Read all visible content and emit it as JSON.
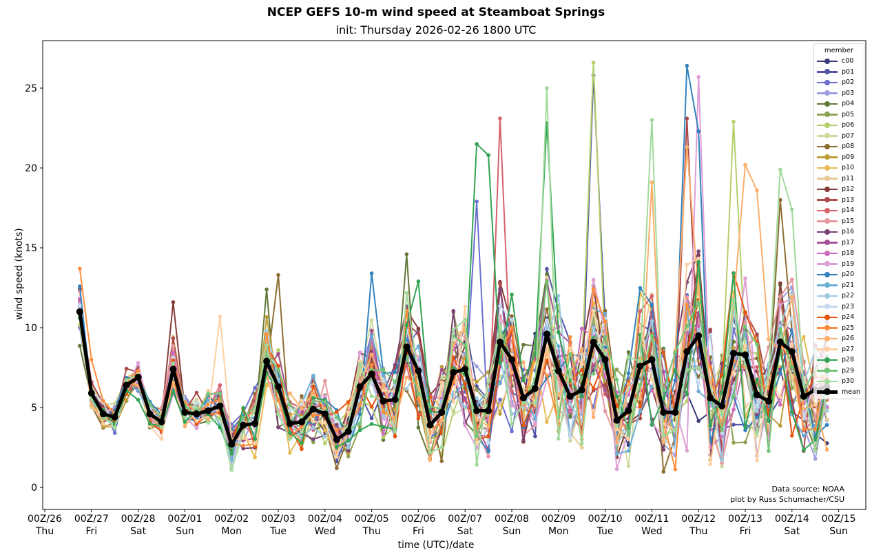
{
  "chart_data": {
    "type": "line",
    "title": "NCEP GEFS 10-m wind speed at Steamboat Springs",
    "subtitle": "init: Thursday 2026-02-26 1800 UTC",
    "xlabel": "time (UTC)/date",
    "ylabel": "wind speed (knots)",
    "ylim": [
      -1.2,
      28.0
    ],
    "yticks": [
      0,
      5,
      10,
      15,
      20,
      25
    ],
    "xlim_days": [
      -0.05,
      17.6
    ],
    "xticks": [
      {
        "line1": "00Z/26",
        "line2": "Thu"
      },
      {
        "line1": "00Z/27",
        "line2": "Fri"
      },
      {
        "line1": "00Z/28",
        "line2": "Sat"
      },
      {
        "line1": "00Z/01",
        "line2": "Sun"
      },
      {
        "line1": "00Z/02",
        "line2": "Mon"
      },
      {
        "line1": "00Z/03",
        "line2": "Tue"
      },
      {
        "line1": "00Z/04",
        "line2": "Wed"
      },
      {
        "line1": "00Z/05",
        "line2": "Thu"
      },
      {
        "line1": "00Z/06",
        "line2": "Fri"
      },
      {
        "line1": "00Z/07",
        "line2": "Sat"
      },
      {
        "line1": "00Z/08",
        "line2": "Sun"
      },
      {
        "line1": "00Z/09",
        "line2": "Mon"
      },
      {
        "line1": "00Z/10",
        "line2": "Tue"
      },
      {
        "line1": "00Z/11",
        "line2": "Wed"
      },
      {
        "line1": "00Z/12",
        "line2": "Thu"
      },
      {
        "line1": "00Z/13",
        "line2": "Fri"
      },
      {
        "line1": "00Z/14",
        "line2": "Sat"
      },
      {
        "line1": "00Z/15",
        "line2": "Sun"
      }
    ],
    "time_start_hours_after_first_tick": 18,
    "time_step_hours": 6,
    "legend": {
      "title": "member",
      "placement": "top-right"
    },
    "mean": {
      "name": "mean",
      "color": "#000000",
      "values": [
        11.0,
        5.9,
        4.6,
        4.4,
        6.4,
        6.9,
        4.6,
        4.1,
        7.4,
        4.7,
        4.6,
        4.8,
        5.1,
        2.7,
        3.9,
        4.0,
        7.9,
        6.3,
        4.0,
        4.1,
        4.9,
        4.6,
        3.0,
        3.5,
        6.3,
        7.1,
        5.4,
        5.5,
        8.8,
        7.3,
        3.9,
        4.7,
        7.2,
        7.4,
        4.8,
        4.8,
        9.1,
        8.0,
        5.6,
        6.2,
        9.6,
        7.3,
        5.7,
        6.1,
        9.1,
        8.0,
        4.2,
        4.8,
        7.6,
        8.0,
        4.7,
        4.7,
        8.5,
        9.5,
        5.6,
        5.1,
        8.4,
        8.3,
        5.8,
        5.4,
        9.1,
        8.5,
        5.7,
        6.1,
        6.3
      ]
    },
    "members": [
      {
        "name": "c00",
        "color": "#393b79"
      },
      {
        "name": "p01",
        "color": "#5254a3"
      },
      {
        "name": "p02",
        "color": "#6b6ecf"
      },
      {
        "name": "p03",
        "color": "#9c9ede"
      },
      {
        "name": "p04",
        "color": "#637939"
      },
      {
        "name": "p05",
        "color": "#8ca252"
      },
      {
        "name": "p06",
        "color": "#b5cf6b"
      },
      {
        "name": "p07",
        "color": "#cedb9c"
      },
      {
        "name": "p08",
        "color": "#8c6d31"
      },
      {
        "name": "p09",
        "color": "#bd9e39"
      },
      {
        "name": "p10",
        "color": "#e7ba52"
      },
      {
        "name": "p11",
        "color": "#e7cb94"
      },
      {
        "name": "p12",
        "color": "#843c39"
      },
      {
        "name": "p13",
        "color": "#ad494a"
      },
      {
        "name": "p14",
        "color": "#d6616b"
      },
      {
        "name": "p15",
        "color": "#e7969c"
      },
      {
        "name": "p16",
        "color": "#7b4173"
      },
      {
        "name": "p17",
        "color": "#a55194"
      },
      {
        "name": "p18",
        "color": "#ce6dbd"
      },
      {
        "name": "p19",
        "color": "#de9ed6"
      },
      {
        "name": "p20",
        "color": "#3182bd"
      },
      {
        "name": "p21",
        "color": "#6baed6"
      },
      {
        "name": "p22",
        "color": "#9ecae1"
      },
      {
        "name": "p23",
        "color": "#c6dbef"
      },
      {
        "name": "p24",
        "color": "#e6550d"
      },
      {
        "name": "p25",
        "color": "#fd8d3c"
      },
      {
        "name": "p26",
        "color": "#fdae6b"
      },
      {
        "name": "p27",
        "color": "#fdd0a2"
      },
      {
        "name": "p28",
        "color": "#31a354"
      },
      {
        "name": "p29",
        "color": "#74c476"
      },
      {
        "name": "p30",
        "color": "#a1d99b"
      }
    ],
    "member_spread_by_step": [
      1.3,
      0.5,
      0.5,
      0.6,
      0.7,
      0.9,
      0.5,
      0.5,
      1.4,
      0.8,
      0.7,
      0.8,
      1.2,
      1.3,
      1.4,
      1.6,
      2.2,
      2.0,
      1.4,
      1.5,
      1.8,
      1.6,
      1.6,
      1.8,
      2.5,
      2.6,
      2.1,
      2.2,
      3.0,
      3.0,
      2.0,
      2.3,
      3.3,
      3.3,
      2.5,
      2.6,
      3.6,
      3.6,
      2.9,
      3.1,
      4.0,
      3.7,
      3.0,
      3.2,
      4.3,
      4.0,
      2.9,
      3.2,
      4.2,
      4.2,
      3.1,
      3.2,
      4.6,
      4.8,
      3.6,
      3.4,
      4.6,
      4.6,
      3.5,
      3.4,
      4.6,
      4.4,
      3.3,
      3.4,
      3.2
    ],
    "member_peaks": [
      {
        "member": "p28",
        "step": 34,
        "value": 21.5
      },
      {
        "member": "p28",
        "step": 35,
        "value": 20.8
      },
      {
        "member": "p02",
        "step": 34,
        "value": 17.9
      },
      {
        "member": "p14",
        "step": 36,
        "value": 23.1
      },
      {
        "member": "p30",
        "step": 40,
        "value": 25.0
      },
      {
        "member": "p28",
        "step": 40,
        "value": 22.8
      },
      {
        "member": "p06",
        "step": 44,
        "value": 26.6
      },
      {
        "member": "p01",
        "step": 44,
        "value": 25.8
      },
      {
        "member": "p30",
        "step": 49,
        "value": 23.0
      },
      {
        "member": "p26",
        "step": 49,
        "value": 19.1
      },
      {
        "member": "p20",
        "step": 52,
        "value": 26.4
      },
      {
        "member": "p20",
        "step": 53,
        "value": 22.3
      },
      {
        "member": "p19",
        "step": 53,
        "value": 25.7
      },
      {
        "member": "p13",
        "step": 52,
        "value": 23.1
      },
      {
        "member": "p26",
        "step": 52,
        "value": 21.3
      },
      {
        "member": "p06",
        "step": 56,
        "value": 22.9
      },
      {
        "member": "p26",
        "step": 57,
        "value": 20.2
      },
      {
        "member": "p26",
        "step": 58,
        "value": 18.6
      },
      {
        "member": "p30",
        "step": 60,
        "value": 19.9
      },
      {
        "member": "p30",
        "step": 61,
        "value": 17.4
      },
      {
        "member": "p08",
        "step": 60,
        "value": 18.0
      },
      {
        "member": "p12",
        "step": 8,
        "value": 11.6
      },
      {
        "member": "p27",
        "step": 12,
        "value": 10.7
      },
      {
        "member": "p08",
        "step": 17,
        "value": 13.3
      },
      {
        "member": "p04",
        "step": 16,
        "value": 12.4
      },
      {
        "member": "p20",
        "step": 25,
        "value": 13.4
      },
      {
        "member": "p04",
        "step": 28,
        "value": 14.6
      },
      {
        "member": "p28",
        "step": 29,
        "value": 12.9
      },
      {
        "member": "p25",
        "step": 0,
        "value": 13.7
      },
      {
        "member": "p25",
        "step": 1,
        "value": 8.0
      }
    ],
    "annotations": [
      "Data source: NOAA",
      "plot by Russ Schumacher/CSU"
    ]
  }
}
